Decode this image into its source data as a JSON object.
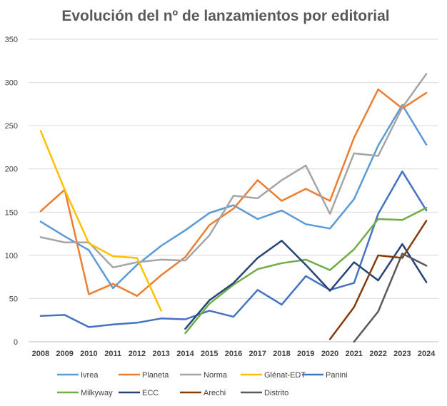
{
  "chart_data": {
    "type": "line",
    "title": "Evolución del nº de lanzamientos por editorial",
    "xlabel": "",
    "ylabel": "",
    "ylim": [
      0,
      350
    ],
    "yticks": [
      0,
      50,
      100,
      150,
      200,
      250,
      300,
      350
    ],
    "x": [
      "2008",
      "2009",
      "2010",
      "2011",
      "2012",
      "2013",
      "2014",
      "2015",
      "2016",
      "2017",
      "2018",
      "2019",
      "2020",
      "2021",
      "2022",
      "2023",
      "2024"
    ],
    "grid": true,
    "legend_position": "bottom",
    "series": [
      {
        "name": "Ivrea",
        "color": "#5b9bd5",
        "values": [
          139,
          122,
          106,
          62,
          89,
          111,
          129,
          149,
          158,
          142,
          152,
          136,
          131,
          165,
          227,
          274,
          228
        ]
      },
      {
        "name": "Planeta",
        "color": "#ed7d31",
        "values": [
          151,
          176,
          55,
          67,
          53,
          77,
          98,
          135,
          154,
          187,
          163,
          177,
          163,
          236,
          292,
          270,
          288
        ]
      },
      {
        "name": "Norma",
        "color": "#a5a5a5",
        "values": [
          121,
          115,
          115,
          86,
          92,
          95,
          94,
          123,
          169,
          166,
          187,
          204,
          148,
          218,
          215,
          271,
          310
        ]
      },
      {
        "name": "Glénat-EDT",
        "color": "#ffc000",
        "values": [
          244,
          176,
          114,
          99,
          97,
          36,
          null,
          null,
          null,
          null,
          null,
          null,
          null,
          null,
          null,
          null,
          null
        ]
      },
      {
        "name": "Panini",
        "color": "#4472c4",
        "values": [
          30,
          31,
          17,
          20,
          22,
          27,
          26,
          36,
          29,
          60,
          43,
          76,
          60,
          68,
          148,
          197,
          152
        ]
      },
      {
        "name": "Milkyway",
        "color": "#70ad47",
        "values": [
          null,
          null,
          null,
          null,
          null,
          null,
          10,
          44,
          66,
          84,
          91,
          95,
          83,
          107,
          142,
          141,
          155
        ]
      },
      {
        "name": "ECC",
        "color": "#264478",
        "values": [
          null,
          null,
          null,
          null,
          null,
          null,
          15,
          48,
          68,
          97,
          117,
          89,
          59,
          92,
          71,
          113,
          69
        ]
      },
      {
        "name": "Arechi",
        "color": "#843c0c",
        "values": [
          null,
          null,
          null,
          null,
          null,
          null,
          null,
          null,
          null,
          null,
          null,
          null,
          3,
          40,
          100,
          97,
          140
        ]
      },
      {
        "name": "Distrito",
        "color": "#595959",
        "values": [
          null,
          null,
          null,
          null,
          null,
          null,
          null,
          null,
          null,
          null,
          null,
          null,
          null,
          0,
          35,
          102,
          88
        ]
      }
    ]
  }
}
